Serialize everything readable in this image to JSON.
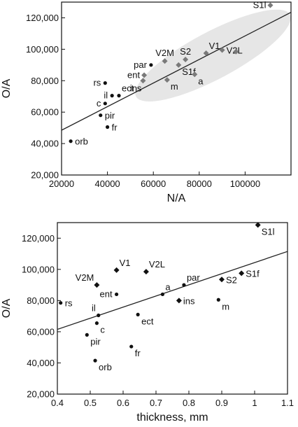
{
  "chart_data": [
    {
      "type": "scatter",
      "title": "",
      "xlabel": "N/A",
      "ylabel": "O/A",
      "xlim": [
        20000,
        120000
      ],
      "ylim": [
        20000,
        130000
      ],
      "xticks": [
        20000,
        40000,
        60000,
        80000,
        100000
      ],
      "xtick_labels": [
        "20000",
        "40000",
        "60000",
        "80000",
        "100000"
      ],
      "yticks": [
        20000,
        40000,
        60000,
        80000,
        100000,
        120000
      ],
      "ytick_labels": [
        "20,000",
        "40,000",
        "60,000",
        "80,000",
        "100,000",
        "120,000"
      ],
      "grid": false,
      "highlight_ellipse": {
        "cx": 86000,
        "cy": 96000,
        "rx": 38000,
        "ry": 15000,
        "angle_deg": -28,
        "color": "#e6e6e6"
      },
      "regression_line": {
        "x": [
          20000,
          120000
        ],
        "y": [
          48500,
          123500
        ],
        "color": "#222222"
      },
      "series": [
        {
          "marker": "circle",
          "color": "#111111",
          "points": [
            {
              "label": "orb",
              "x": 24000,
              "y": 41500,
              "lpos": "r"
            },
            {
              "label": "fr",
              "x": 40000,
              "y": 50500,
              "lpos": "r"
            },
            {
              "label": "pir",
              "x": 37000,
              "y": 58000,
              "lpos": "r"
            },
            {
              "label": "c",
              "x": 39000,
              "y": 65500,
              "lpos": "l"
            },
            {
              "label": "il",
              "x": 42000,
              "y": 70500,
              "lpos": "l"
            },
            {
              "label": "ect",
              "x": 45000,
              "y": 70500,
              "lpos": "ur"
            },
            {
              "label": "rs",
              "x": 39000,
              "y": 78500,
              "lpos": "l"
            },
            {
              "label": "par",
              "x": 59000,
              "y": 90000,
              "lpos": "l"
            }
          ]
        },
        {
          "marker": "diamond",
          "color": "#7a7a7a",
          "points": [
            {
              "label": "ent",
              "x": 56000,
              "y": 83500,
              "lpos": "l"
            },
            {
              "label": "ins",
              "x": 55500,
              "y": 80000,
              "lpos": "dl"
            },
            {
              "label": "m",
              "x": 66000,
              "y": 80500,
              "lpos": "dr"
            },
            {
              "label": "V2M",
              "x": 65000,
              "y": 92500,
              "lpos": "u"
            },
            {
              "label": "S2",
              "x": 74000,
              "y": 93500,
              "lpos": "u"
            },
            {
              "label": "S1f",
              "x": 71000,
              "y": 90000,
              "lpos": "dr"
            },
            {
              "label": "a",
              "x": 78000,
              "y": 84000,
              "lpos": "dr"
            },
            {
              "label": "V1",
              "x": 83000,
              "y": 97500,
              "lpos": "ur"
            },
            {
              "label": "V2L",
              "x": 90000,
              "y": 99500,
              "lpos": "r0"
            },
            {
              "label": "V2L",
              "x": 96000,
              "y": 98500,
              "lpos": "r"
            },
            {
              "label": "S1l",
              "x": 111000,
              "y": 128000,
              "lpos": "l"
            }
          ]
        }
      ]
    },
    {
      "type": "scatter",
      "title": "",
      "xlabel": "thickness, mm",
      "ylabel": "O/A",
      "xlim": [
        0.4,
        1.1
      ],
      "ylim": [
        20000,
        130000
      ],
      "xticks": [
        0.4,
        0.5,
        0.6,
        0.7,
        0.8,
        0.9,
        1.0,
        1.1
      ],
      "xtick_labels": [
        "0.4",
        "0.5",
        "0.6",
        "0.7",
        "0.8",
        "0.9",
        "1",
        "1.1"
      ],
      "yticks": [
        20000,
        40000,
        60000,
        80000,
        100000,
        120000
      ],
      "ytick_labels": [
        "20,000",
        "40,000",
        "60,000",
        "80,000",
        "100,000",
        "120,000"
      ],
      "grid": false,
      "regression_line": {
        "x": [
          0.4,
          1.1
        ],
        "y": [
          61500,
          111500
        ],
        "color": "#222222"
      },
      "series": [
        {
          "marker": "circle",
          "color": "#111111",
          "points": [
            {
              "label": "rs",
              "x": 0.41,
              "y": 78500,
              "lpos": "r"
            },
            {
              "label": "orb",
              "x": 0.515,
              "y": 41500,
              "lpos": "dr"
            },
            {
              "label": "pir",
              "x": 0.49,
              "y": 58000,
              "lpos": "dr"
            },
            {
              "label": "c",
              "x": 0.52,
              "y": 65500,
              "lpos": "dr"
            },
            {
              "label": "il",
              "x": 0.525,
              "y": 70500,
              "lpos": "ul"
            },
            {
              "label": "ent",
              "x": 0.58,
              "y": 84000,
              "lpos": "l"
            },
            {
              "label": "ect",
              "x": 0.645,
              "y": 71000,
              "lpos": "dr"
            },
            {
              "label": "fr",
              "x": 0.625,
              "y": 50500,
              "lpos": "dr"
            },
            {
              "label": "a",
              "x": 0.72,
              "y": 84000,
              "lpos": "ur"
            },
            {
              "label": "par",
              "x": 0.785,
              "y": 90000,
              "lpos": "ur"
            },
            {
              "label": "m",
              "x": 0.89,
              "y": 80500,
              "lpos": "dr"
            }
          ]
        },
        {
          "marker": "diamond",
          "color": "#111111",
          "points": [
            {
              "label": "V2M",
              "x": 0.52,
              "y": 90000,
              "lpos": "ul"
            },
            {
              "label": "V1",
              "x": 0.58,
              "y": 99500,
              "lpos": "ur"
            },
            {
              "label": "V2L",
              "x": 0.67,
              "y": 98500,
              "lpos": "ur"
            },
            {
              "label": "ins",
              "x": 0.77,
              "y": 80000,
              "lpos": "r"
            },
            {
              "label": "S2",
              "x": 0.9,
              "y": 93500,
              "lpos": "r"
            },
            {
              "label": "S1f",
              "x": 0.96,
              "y": 97500,
              "lpos": "r"
            },
            {
              "label": "S1l",
              "x": 1.01,
              "y": 128500,
              "lpos": "dr"
            }
          ]
        }
      ]
    }
  ]
}
